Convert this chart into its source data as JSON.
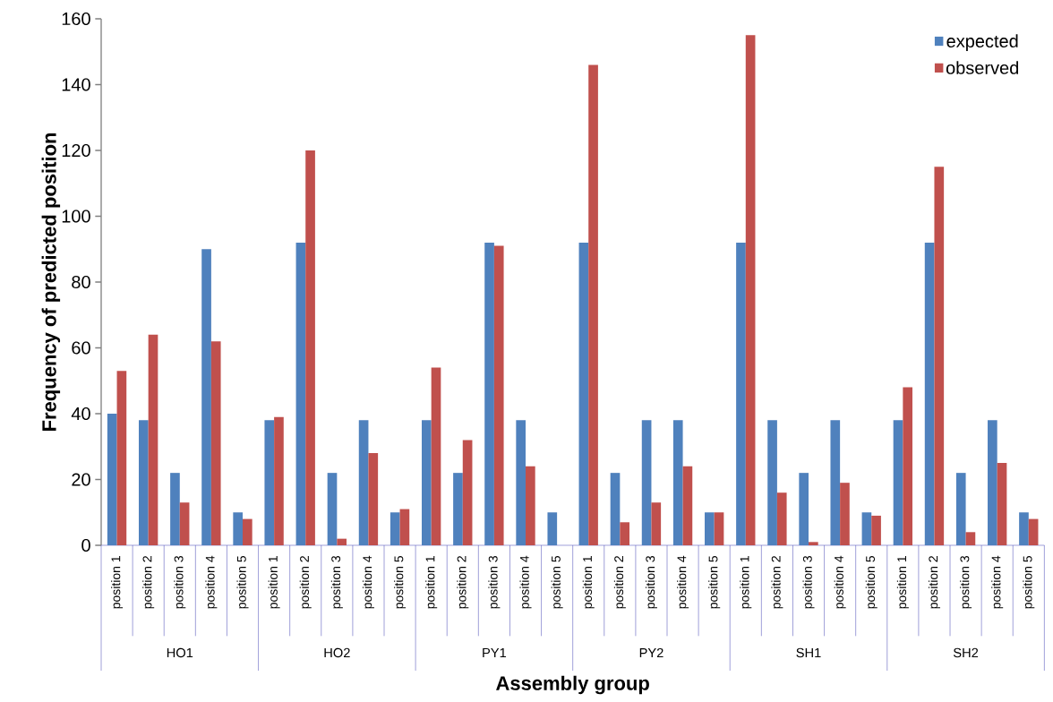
{
  "chart_data": {
    "type": "bar",
    "xlabel": "Assembly group",
    "ylabel": "Frequency of predicted position",
    "categories": [
      "position 1",
      "position 2",
      "position 3",
      "position 4",
      "position 5",
      "position 1",
      "position 2",
      "position 3",
      "position 4",
      "position 5",
      "position 1",
      "position 2",
      "position 3",
      "position 4",
      "position 5",
      "position 1",
      "position 2",
      "position 3",
      "position 4",
      "position 5",
      "position 1",
      "position 2",
      "position 3",
      "position 4",
      "position 5",
      "position 1",
      "position 2",
      "position 3",
      "position 4",
      "position 5"
    ],
    "annotations": [
      "HO1",
      "HO2",
      "PY1",
      "PY2",
      "SH1",
      "SH2"
    ],
    "series": [
      {
        "name": "expected",
        "color": "#4f81bd",
        "values": [
          40,
          38,
          22,
          90,
          10,
          38,
          92,
          22,
          38,
          10,
          38,
          22,
          92,
          38,
          10,
          92,
          22,
          38,
          38,
          10,
          92,
          38,
          22,
          38,
          10,
          38,
          92,
          22,
          38,
          10
        ]
      },
      {
        "name": "observed",
        "color": "#c0504d",
        "values": [
          53,
          64,
          13,
          62,
          8,
          39,
          120,
          2,
          28,
          11,
          54,
          32,
          91,
          24,
          0,
          146,
          7,
          13,
          24,
          10,
          155,
          16,
          1,
          19,
          9,
          48,
          115,
          4,
          25,
          8
        ]
      }
    ],
    "ylim": [
      0,
      160
    ],
    "yticks": [
      0,
      20,
      40,
      60,
      80,
      100,
      120,
      140,
      160
    ],
    "legend": "top right",
    "grid": false
  }
}
